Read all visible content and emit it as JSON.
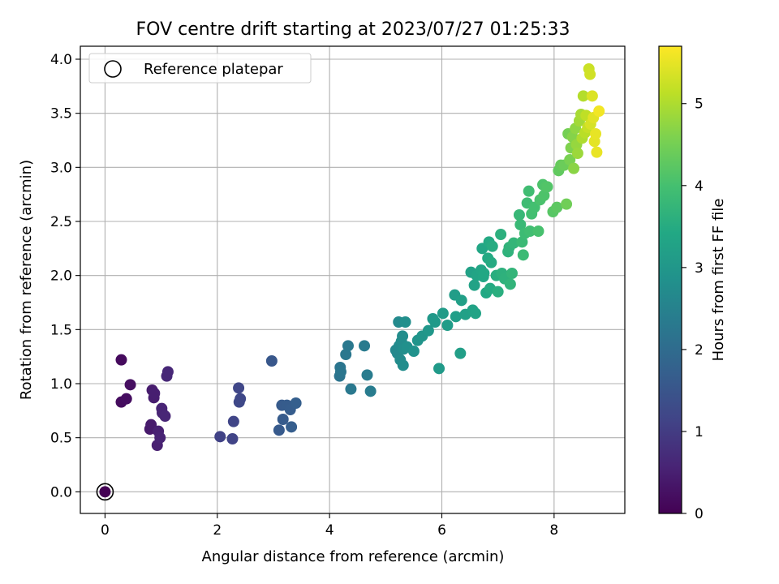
{
  "chart_data": {
    "type": "scatter",
    "title": "FOV centre drift starting at 2023/07/27 01:25:33",
    "xlabel": "Angular distance from reference (arcmin)",
    "ylabel": "Rotation from reference (arcmin)",
    "xlim": [
      -0.44,
      9.26
    ],
    "ylim": [
      -0.2,
      4.12
    ],
    "xticks": [
      0,
      2,
      4,
      6,
      8
    ],
    "xtick_labels": [
      "0",
      "2",
      "4",
      "6",
      "8"
    ],
    "yticks": [
      0.0,
      0.5,
      1.0,
      1.5,
      2.0,
      2.5,
      3.0,
      3.5,
      4.0
    ],
    "ytick_labels": [
      "0.0",
      "0.5",
      "1.0",
      "1.5",
      "2.0",
      "2.5",
      "3.0",
      "3.5",
      "4.0"
    ],
    "grid": true,
    "legend": {
      "position": "top-left",
      "entries": [
        "Reference platepar"
      ]
    },
    "colorbar": {
      "label": "Hours from first FF file",
      "colormap": "viridis",
      "range": [
        0,
        5.7
      ],
      "ticks": [
        0,
        1,
        2,
        3,
        4,
        5
      ],
      "tick_labels": [
        "0",
        "1",
        "2",
        "3",
        "4",
        "5"
      ]
    },
    "reference_point": {
      "x": 0,
      "y": 0
    },
    "series": [
      {
        "points": [
          {
            "x": 0.0,
            "y": 0.0,
            "c": 0.0
          },
          {
            "x": 0.29,
            "y": 1.22,
            "c": 0.15
          },
          {
            "x": 0.29,
            "y": 0.83,
            "c": 0.18
          },
          {
            "x": 0.38,
            "y": 0.86,
            "c": 0.2
          },
          {
            "x": 0.45,
            "y": 0.99,
            "c": 0.22
          },
          {
            "x": 0.8,
            "y": 0.58,
            "c": 0.4
          },
          {
            "x": 0.82,
            "y": 0.62,
            "c": 0.42
          },
          {
            "x": 0.84,
            "y": 0.94,
            "c": 0.44
          },
          {
            "x": 0.87,
            "y": 0.87,
            "c": 0.46
          },
          {
            "x": 0.88,
            "y": 0.91,
            "c": 0.48
          },
          {
            "x": 0.93,
            "y": 0.43,
            "c": 0.5
          },
          {
            "x": 0.95,
            "y": 0.56,
            "c": 0.52
          },
          {
            "x": 0.98,
            "y": 0.5,
            "c": 0.55
          },
          {
            "x": 1.01,
            "y": 0.77,
            "c": 0.57
          },
          {
            "x": 1.02,
            "y": 0.73,
            "c": 0.58
          },
          {
            "x": 1.07,
            "y": 0.7,
            "c": 0.6
          },
          {
            "x": 1.1,
            "y": 1.07,
            "c": 0.62
          },
          {
            "x": 1.12,
            "y": 1.11,
            "c": 0.63
          },
          {
            "x": 2.05,
            "y": 0.51,
            "c": 1.1
          },
          {
            "x": 2.27,
            "y": 0.49,
            "c": 1.15
          },
          {
            "x": 2.29,
            "y": 0.65,
            "c": 1.17
          },
          {
            "x": 2.38,
            "y": 0.96,
            "c": 1.2
          },
          {
            "x": 2.39,
            "y": 0.83,
            "c": 1.22
          },
          {
            "x": 2.41,
            "y": 0.86,
            "c": 1.23
          },
          {
            "x": 2.97,
            "y": 1.21,
            "c": 1.55
          },
          {
            "x": 3.1,
            "y": 0.57,
            "c": 1.6
          },
          {
            "x": 3.15,
            "y": 0.8,
            "c": 1.62
          },
          {
            "x": 3.17,
            "y": 0.67,
            "c": 1.63
          },
          {
            "x": 3.24,
            "y": 0.8,
            "c": 1.65
          },
          {
            "x": 3.3,
            "y": 0.76,
            "c": 1.67
          },
          {
            "x": 3.32,
            "y": 0.6,
            "c": 1.68
          },
          {
            "x": 3.4,
            "y": 0.82,
            "c": 1.7
          },
          {
            "x": 4.18,
            "y": 1.07,
            "c": 2.2
          },
          {
            "x": 4.19,
            "y": 1.15,
            "c": 2.22
          },
          {
            "x": 4.2,
            "y": 1.11,
            "c": 2.23
          },
          {
            "x": 4.29,
            "y": 1.27,
            "c": 2.25
          },
          {
            "x": 4.33,
            "y": 1.35,
            "c": 2.27
          },
          {
            "x": 4.38,
            "y": 0.95,
            "c": 2.28
          },
          {
            "x": 4.62,
            "y": 1.35,
            "c": 2.35
          },
          {
            "x": 4.67,
            "y": 1.08,
            "c": 2.37
          },
          {
            "x": 4.73,
            "y": 0.93,
            "c": 2.38
          },
          {
            "x": 5.18,
            "y": 1.31,
            "c": 2.65
          },
          {
            "x": 5.21,
            "y": 1.28,
            "c": 2.67
          },
          {
            "x": 5.23,
            "y": 1.57,
            "c": 2.68
          },
          {
            "x": 5.24,
            "y": 1.35,
            "c": 2.7
          },
          {
            "x": 5.26,
            "y": 1.22,
            "c": 2.72
          },
          {
            "x": 5.28,
            "y": 1.39,
            "c": 2.73
          },
          {
            "x": 5.3,
            "y": 1.44,
            "c": 2.75
          },
          {
            "x": 5.31,
            "y": 1.17,
            "c": 2.76
          },
          {
            "x": 5.32,
            "y": 1.32,
            "c": 2.78
          },
          {
            "x": 5.35,
            "y": 1.57,
            "c": 2.8
          },
          {
            "x": 5.38,
            "y": 1.34,
            "c": 2.82
          },
          {
            "x": 5.5,
            "y": 1.3,
            "c": 2.88
          },
          {
            "x": 5.57,
            "y": 1.4,
            "c": 2.92
          },
          {
            "x": 5.65,
            "y": 1.44,
            "c": 2.96
          },
          {
            "x": 5.76,
            "y": 1.49,
            "c": 3.0
          },
          {
            "x": 5.84,
            "y": 1.6,
            "c": 3.03
          },
          {
            "x": 5.88,
            "y": 1.57,
            "c": 3.05
          },
          {
            "x": 5.95,
            "y": 1.14,
            "c": 3.08
          },
          {
            "x": 6.02,
            "y": 1.65,
            "c": 3.1
          },
          {
            "x": 6.1,
            "y": 1.54,
            "c": 3.12
          },
          {
            "x": 6.23,
            "y": 1.82,
            "c": 3.15
          },
          {
            "x": 6.25,
            "y": 1.62,
            "c": 3.17
          },
          {
            "x": 6.33,
            "y": 1.28,
            "c": 3.18
          },
          {
            "x": 6.35,
            "y": 1.77,
            "c": 3.2
          },
          {
            "x": 6.42,
            "y": 1.64,
            "c": 3.22
          },
          {
            "x": 6.52,
            "y": 2.03,
            "c": 3.25
          },
          {
            "x": 6.55,
            "y": 1.68,
            "c": 3.27
          },
          {
            "x": 6.58,
            "y": 1.91,
            "c": 3.28
          },
          {
            "x": 6.6,
            "y": 1.65,
            "c": 3.3
          },
          {
            "x": 6.62,
            "y": 2.0,
            "c": 3.32
          },
          {
            "x": 6.7,
            "y": 2.05,
            "c": 3.35
          },
          {
            "x": 6.72,
            "y": 2.25,
            "c": 3.37
          },
          {
            "x": 6.74,
            "y": 1.99,
            "c": 3.38
          },
          {
            "x": 6.75,
            "y": 2.02,
            "c": 3.4
          },
          {
            "x": 6.79,
            "y": 1.84,
            "c": 3.42
          },
          {
            "x": 6.82,
            "y": 2.16,
            "c": 3.44
          },
          {
            "x": 6.84,
            "y": 2.31,
            "c": 3.45
          },
          {
            "x": 6.86,
            "y": 1.88,
            "c": 3.47
          },
          {
            "x": 6.88,
            "y": 2.12,
            "c": 3.48
          },
          {
            "x": 6.9,
            "y": 2.27,
            "c": 3.5
          },
          {
            "x": 6.97,
            "y": 2.0,
            "c": 3.55
          },
          {
            "x": 7.0,
            "y": 1.85,
            "c": 3.57
          },
          {
            "x": 7.05,
            "y": 2.38,
            "c": 3.6
          },
          {
            "x": 7.07,
            "y": 2.02,
            "c": 3.62
          },
          {
            "x": 7.12,
            "y": 1.97,
            "c": 3.64
          },
          {
            "x": 7.18,
            "y": 2.22,
            "c": 3.66
          },
          {
            "x": 7.2,
            "y": 2.26,
            "c": 3.68
          },
          {
            "x": 7.22,
            "y": 1.92,
            "c": 3.7
          },
          {
            "x": 7.25,
            "y": 2.02,
            "c": 3.72
          },
          {
            "x": 7.28,
            "y": 2.3,
            "c": 3.74
          },
          {
            "x": 7.38,
            "y": 2.56,
            "c": 3.8
          },
          {
            "x": 7.4,
            "y": 2.47,
            "c": 3.82
          },
          {
            "x": 7.43,
            "y": 2.31,
            "c": 3.84
          },
          {
            "x": 7.45,
            "y": 2.19,
            "c": 3.86
          },
          {
            "x": 7.48,
            "y": 2.39,
            "c": 3.88
          },
          {
            "x": 7.52,
            "y": 2.67,
            "c": 3.9
          },
          {
            "x": 7.55,
            "y": 2.78,
            "c": 3.92
          },
          {
            "x": 7.57,
            "y": 2.41,
            "c": 3.94
          },
          {
            "x": 7.6,
            "y": 2.57,
            "c": 3.96
          },
          {
            "x": 7.65,
            "y": 2.63,
            "c": 3.98
          },
          {
            "x": 7.72,
            "y": 2.41,
            "c": 4.02
          },
          {
            "x": 7.75,
            "y": 2.7,
            "c": 4.05
          },
          {
            "x": 7.8,
            "y": 2.84,
            "c": 4.08
          },
          {
            "x": 7.82,
            "y": 2.74,
            "c": 4.1
          },
          {
            "x": 7.85,
            "y": 2.82,
            "c": 4.12
          },
          {
            "x": 7.88,
            "y": 2.82,
            "c": 4.14
          },
          {
            "x": 7.98,
            "y": 2.59,
            "c": 4.2
          },
          {
            "x": 8.05,
            "y": 2.63,
            "c": 4.25
          },
          {
            "x": 8.08,
            "y": 2.97,
            "c": 4.3
          },
          {
            "x": 8.12,
            "y": 3.02,
            "c": 4.35
          },
          {
            "x": 8.18,
            "y": 3.02,
            "c": 4.4
          },
          {
            "x": 8.22,
            "y": 2.66,
            "c": 4.45
          },
          {
            "x": 8.25,
            "y": 3.31,
            "c": 4.5
          },
          {
            "x": 8.28,
            "y": 3.07,
            "c": 4.55
          },
          {
            "x": 8.3,
            "y": 3.18,
            "c": 4.6
          },
          {
            "x": 8.33,
            "y": 3.28,
            "c": 4.65
          },
          {
            "x": 8.35,
            "y": 2.99,
            "c": 4.7
          },
          {
            "x": 8.38,
            "y": 3.36,
            "c": 4.75
          },
          {
            "x": 8.4,
            "y": 3.21,
            "c": 4.8
          },
          {
            "x": 8.42,
            "y": 3.13,
            "c": 4.85
          },
          {
            "x": 8.45,
            "y": 3.43,
            "c": 4.9
          },
          {
            "x": 8.48,
            "y": 3.49,
            "c": 4.95
          },
          {
            "x": 8.5,
            "y": 3.27,
            "c": 5.0
          },
          {
            "x": 8.52,
            "y": 3.66,
            "c": 5.05
          },
          {
            "x": 8.55,
            "y": 3.32,
            "c": 5.1
          },
          {
            "x": 8.57,
            "y": 3.48,
            "c": 5.15
          },
          {
            "x": 8.6,
            "y": 3.37,
            "c": 5.2
          },
          {
            "x": 8.62,
            "y": 3.91,
            "c": 5.25
          },
          {
            "x": 8.64,
            "y": 3.86,
            "c": 5.3
          },
          {
            "x": 8.65,
            "y": 3.4,
            "c": 5.35
          },
          {
            "x": 8.68,
            "y": 3.66,
            "c": 5.4
          },
          {
            "x": 8.7,
            "y": 3.46,
            "c": 5.45
          },
          {
            "x": 8.72,
            "y": 3.24,
            "c": 5.48
          },
          {
            "x": 8.74,
            "y": 3.31,
            "c": 5.5
          },
          {
            "x": 8.76,
            "y": 3.14,
            "c": 5.52
          },
          {
            "x": 8.8,
            "y": 3.52,
            "c": 5.6
          }
        ]
      }
    ]
  }
}
